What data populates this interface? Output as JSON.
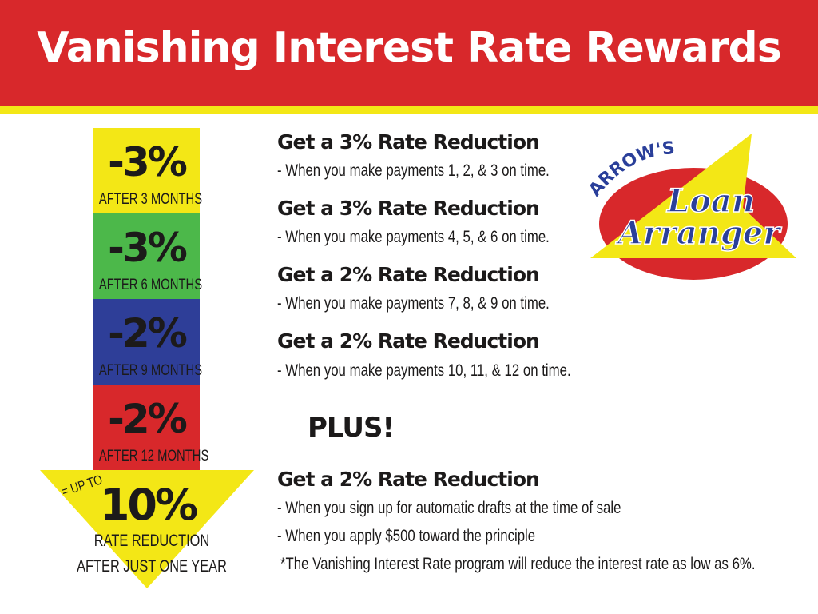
{
  "header": {
    "title": "Vanishing Interest Rate Rewards"
  },
  "colors": {
    "red": "#d8282b",
    "yellow": "#f3e716",
    "green": "#4cb84a",
    "blue": "#2e3e98",
    "logo_blue": "#2a3f9a"
  },
  "steps": [
    {
      "value": "-3%",
      "label": "AFTER 3 MONTHS",
      "color": "#f3e716"
    },
    {
      "value": "-3%",
      "label": "AFTER 6 MONTHS",
      "color": "#4cb84a"
    },
    {
      "value": "-2%",
      "label": "AFTER 9 MONTHS",
      "color": "#2e3e98"
    },
    {
      "value": "-2%",
      "label": "AFTER 12 MONTHS",
      "color": "#d8282b"
    }
  ],
  "total": {
    "prefix": "= UP TO",
    "value": "10%",
    "line1": "RATE REDUCTION",
    "line2": "AFTER JUST ONE YEAR"
  },
  "rewards": [
    {
      "heading": "Get a 3% Rate Reduction",
      "detail": "- When you make payments 1, 2, & 3 on time."
    },
    {
      "heading": "Get a 3% Rate Reduction",
      "detail": "- When you make payments 4, 5, & 6 on time."
    },
    {
      "heading": "Get a 2% Rate Reduction",
      "detail": "- When you make payments 7, 8, & 9 on time."
    },
    {
      "heading": "Get a 2% Rate Reduction",
      "detail": "- When you make payments 10, 11, & 12 on time."
    }
  ],
  "plus": {
    "label": "PLUS!",
    "heading": "Get a 2% Rate Reduction",
    "details": [
      "- When you sign up for automatic drafts at the time of sale",
      "- When you apply $500 toward the principle"
    ],
    "note": "*The Vanishing Interest Rate program will reduce the interest rate as low as 6%."
  },
  "logo": {
    "top": "ARROW'S",
    "line1": "Loan",
    "line2": "Arranger"
  }
}
